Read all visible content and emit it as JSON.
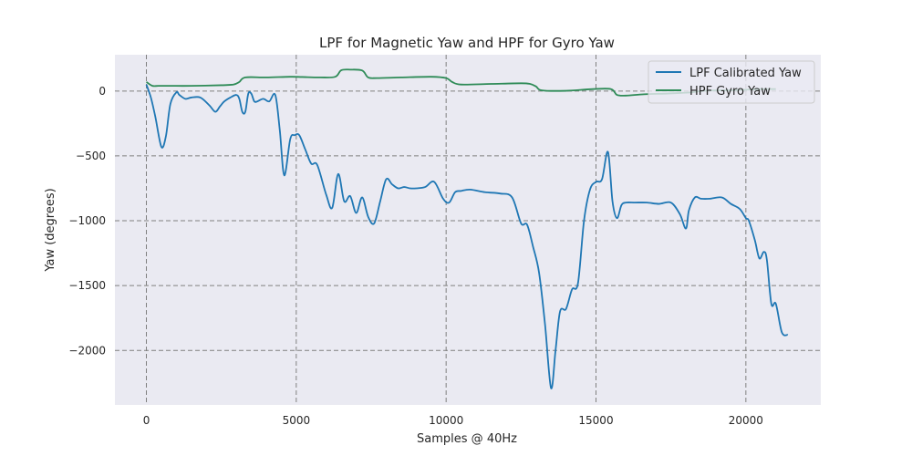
{
  "chart_data": {
    "type": "line",
    "title": "LPF for Magnetic Yaw and HPF for Gyro Yaw",
    "xlabel": "Samples @ 40Hz",
    "ylabel": "Yaw (degrees)",
    "xlim": [
      -1050,
      22500
    ],
    "ylim": [
      -2420,
      280
    ],
    "xticks": [
      0,
      5000,
      10000,
      15000,
      20000
    ],
    "yticks": [
      0,
      -500,
      -1000,
      -1500,
      -2000
    ],
    "xtick_labels": [
      "0",
      "5000",
      "10000",
      "15000",
      "20000"
    ],
    "ytick_labels": [
      "0",
      "−500",
      "−1000",
      "−1500",
      "−2000"
    ],
    "grid": true,
    "legend_position": "top-right",
    "plot_background": "#eaeaf2",
    "grid_color": "#808080",
    "series": [
      {
        "name": "LPF Calibrated Yaw",
        "color": "#1f77b4",
        "x": [
          0,
          150,
          300,
          500,
          650,
          800,
          1000,
          1100,
          1300,
          1500,
          1800,
          2100,
          2300,
          2450,
          2600,
          2800,
          3000,
          3100,
          3200,
          3300,
          3400,
          3500,
          3600,
          3700,
          3900,
          4100,
          4300,
          4450,
          4600,
          4800,
          4950,
          5100,
          5300,
          5500,
          5700,
          6000,
          6200,
          6400,
          6600,
          6800,
          7000,
          7200,
          7400,
          7600,
          7800,
          8000,
          8200,
          8400,
          8600,
          8800,
          9000,
          9300,
          9600,
          9900,
          10100,
          10300,
          10500,
          10800,
          11300,
          11800,
          12200,
          12500,
          12700,
          12900,
          13100,
          13300,
          13500,
          13650,
          13800,
          14000,
          14200,
          14400,
          14600,
          14800,
          15000,
          15200,
          15400,
          15550,
          15700,
          15850,
          16000,
          16300,
          16700,
          17100,
          17500,
          17800,
          18000,
          18100,
          18300,
          18500,
          18800,
          19200,
          19500,
          19800,
          20000,
          20100,
          20300,
          20450,
          20600,
          20700,
          20850,
          21000,
          21200,
          21400
        ],
        "y": [
          50,
          -50,
          -200,
          -430,
          -350,
          -100,
          -10,
          -30,
          -60,
          -50,
          -50,
          -110,
          -160,
          -120,
          -80,
          -50,
          -30,
          -60,
          -160,
          -160,
          -20,
          -20,
          -80,
          -80,
          -60,
          -80,
          -30,
          -300,
          -650,
          -370,
          -340,
          -340,
          -450,
          -560,
          -570,
          -800,
          -900,
          -640,
          -850,
          -810,
          -940,
          -820,
          -970,
          -1020,
          -850,
          -680,
          -720,
          -750,
          -740,
          -750,
          -750,
          -740,
          -700,
          -830,
          -860,
          -780,
          -770,
          -760,
          -780,
          -790,
          -820,
          -1020,
          -1030,
          -1200,
          -1400,
          -1800,
          -2290,
          -2000,
          -1700,
          -1680,
          -1530,
          -1480,
          -1000,
          -760,
          -700,
          -680,
          -470,
          -850,
          -980,
          -880,
          -860,
          -860,
          -860,
          -870,
          -860,
          -950,
          -1060,
          -920,
          -820,
          -830,
          -830,
          -820,
          -870,
          -910,
          -980,
          -1000,
          -1150,
          -1290,
          -1240,
          -1300,
          -1640,
          -1640,
          -1860,
          -1880
        ]
      },
      {
        "name": "HPF Gyro Yaw",
        "color": "#2e8b57",
        "x": [
          0,
          200,
          400,
          800,
          1500,
          2500,
          2900,
          3100,
          3300,
          4000,
          4800,
          5200,
          5800,
          6300,
          6500,
          6800,
          7200,
          7400,
          7700,
          8500,
          9500,
          10000,
          10200,
          10500,
          11500,
          12500,
          12800,
          13000,
          13200,
          14000,
          14900,
          15500,
          15700,
          16000,
          16600,
          17300,
          17800,
          18200,
          18500,
          19000,
          19500,
          20000,
          20500,
          21000
        ],
        "y": [
          70,
          40,
          40,
          40,
          40,
          45,
          50,
          70,
          105,
          105,
          110,
          108,
          105,
          110,
          160,
          165,
          158,
          105,
          100,
          105,
          110,
          100,
          70,
          50,
          55,
          60,
          55,
          35,
          5,
          2,
          15,
          15,
          -30,
          -35,
          -25,
          -20,
          -15,
          -10,
          0,
          5,
          5,
          10,
          15,
          15
        ]
      }
    ]
  }
}
